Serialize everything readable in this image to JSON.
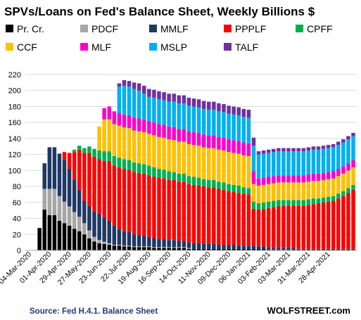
{
  "colors": {
    "Pr. Cr.": "#000000",
    "PDCF": "#a6a6a6",
    "MMLF": "#1f3864",
    "PPPLF": "#ff0000",
    "CPFF": "#00b050",
    "CCF": "#ffc000",
    "MLF": "#ff00cc",
    "MSLP": "#00b0f0",
    "TALF": "#7030a0"
  },
  "chart_data": {
    "type": "bar",
    "stacked": true,
    "title": "SPVs/Loans  on Fed's Balance Sheet, Weekly Billions $",
    "source": "Source: Fed H.4.1. Balance Sheet",
    "brand": "WOLFSTREET.com",
    "legend_position": "top",
    "legend": [
      "Pr. Cr.",
      "PDCF",
      "MMLF",
      "PPPLF",
      "CPFF",
      "CCF",
      "MLF",
      "MSLP",
      "TALF"
    ],
    "ylim": [
      0,
      220
    ],
    "yticks": [
      0,
      20,
      40,
      60,
      80,
      100,
      120,
      140,
      160,
      180,
      200,
      220
    ],
    "grid": true,
    "x_labels": [
      "04-Mar-2020",
      "01-Apr-2020",
      "29-Apr-2020",
      "27-May-2020",
      "23-Jun-2020",
      "22-Jul-2020",
      "19-Aug-2020",
      "16-Sep-2020",
      "14-Oct-2020",
      "11-Nov-2020",
      "09-Dec-2020",
      "06-Jan-2021",
      "03-Feb-2021",
      "03-Mar-2021",
      "31-Mar-2021",
      "28-Apr-2021"
    ],
    "x_label_positions": [
      0,
      4,
      8,
      12,
      16,
      20,
      24,
      28,
      32,
      36,
      40,
      44,
      48,
      52,
      56,
      60
    ],
    "series": [
      {
        "name": "Pr. Cr.",
        "values": [
          0,
          0,
          28,
          51,
          44,
          44,
          37,
          34,
          31,
          27,
          24,
          20,
          15,
          11,
          9,
          8,
          7,
          6,
          6,
          5,
          5,
          4,
          4,
          4,
          4,
          3,
          3,
          3,
          3,
          3,
          3,
          3,
          2,
          2,
          2,
          2,
          2,
          2,
          2,
          2,
          2,
          2,
          2,
          2,
          2,
          2,
          2,
          2,
          1,
          1,
          1,
          1,
          1,
          1,
          1,
          1,
          1,
          1,
          1,
          1,
          1,
          1,
          1,
          1,
          1,
          1
        ]
      },
      {
        "name": "PDCF",
        "values": [
          0,
          0,
          0,
          26,
          33,
          33,
          31,
          27,
          24,
          21,
          18,
          14,
          10,
          6,
          4,
          3,
          2,
          1,
          1,
          1,
          1,
          1,
          1,
          1,
          1,
          1,
          1,
          1,
          1,
          1,
          1,
          1,
          1,
          0,
          0,
          0,
          0,
          0,
          0,
          0,
          0,
          0,
          0,
          0,
          0,
          0,
          0,
          0,
          0,
          0,
          0,
          0,
          0,
          0,
          0,
          0,
          0,
          0,
          0,
          0,
          0,
          0,
          0,
          0,
          0,
          0
        ]
      },
      {
        "name": "MMLF",
        "values": [
          0,
          0,
          0,
          32,
          52,
          52,
          53,
          52,
          47,
          40,
          34,
          28,
          30,
          32,
          33,
          30,
          28,
          24,
          20,
          18,
          17,
          15,
          14,
          13,
          12,
          11,
          10,
          10,
          9,
          9,
          8,
          8,
          7,
          7,
          7,
          6,
          6,
          6,
          5,
          5,
          5,
          5,
          4,
          4,
          4,
          4,
          3,
          3,
          2,
          2,
          2,
          2,
          2,
          2,
          1,
          1,
          1,
          1,
          1,
          1,
          1,
          1,
          1,
          1,
          1,
          1
        ]
      },
      {
        "name": "PPPLF",
        "values": [
          0,
          0,
          0,
          0,
          0,
          0,
          0,
          10,
          20,
          35,
          50,
          60,
          67,
          68,
          68,
          71,
          75,
          75,
          77,
          78,
          78,
          78,
          78,
          78,
          77,
          77,
          77,
          76,
          75,
          75,
          74,
          74,
          73,
          73,
          72,
          72,
          71,
          71,
          70,
          69,
          67,
          66,
          66,
          65,
          64,
          46,
          46,
          47,
          50,
          51,
          52,
          53,
          53,
          53,
          54,
          54,
          55,
          56,
          57,
          58,
          59,
          60,
          63,
          66,
          70,
          74
        ]
      },
      {
        "name": "CPFF",
        "values": [
          0,
          0,
          0,
          0,
          0,
          0,
          0,
          0,
          0,
          3,
          5,
          6,
          8,
          10,
          11,
          12,
          12,
          12,
          12,
          12,
          12,
          12,
          12,
          12,
          12,
          12,
          11,
          11,
          11,
          10,
          10,
          10,
          10,
          10,
          10,
          9,
          9,
          9,
          9,
          9,
          9,
          9,
          9,
          8,
          8,
          9,
          8,
          8,
          8,
          8,
          8,
          7,
          7,
          7,
          7,
          7,
          7,
          7,
          6,
          6,
          6,
          6,
          6,
          6,
          6,
          6
        ]
      },
      {
        "name": "CCF",
        "values": [
          0,
          0,
          0,
          0,
          0,
          0,
          0,
          0,
          0,
          0,
          0,
          0,
          0,
          0,
          30,
          40,
          40,
          40,
          40,
          40,
          40,
          40,
          40,
          40,
          40,
          40,
          40,
          40,
          40,
          40,
          40,
          40,
          40,
          40,
          40,
          40,
          40,
          40,
          40,
          40,
          40,
          40,
          40,
          40,
          40,
          22,
          22,
          22,
          22,
          22,
          22,
          22,
          22,
          22,
          22,
          22,
          22,
          22,
          22,
          22,
          22,
          22,
          22,
          22,
          22,
          22
        ]
      },
      {
        "name": "MLF",
        "values": [
          0,
          0,
          0,
          0,
          0,
          0,
          0,
          0,
          0,
          0,
          0,
          0,
          0,
          0,
          0,
          14,
          16,
          16,
          16,
          16,
          16,
          16,
          16,
          16,
          16,
          16,
          16,
          16,
          16,
          16,
          16,
          16,
          16,
          16,
          16,
          16,
          16,
          16,
          16,
          16,
          16,
          16,
          16,
          16,
          16,
          16,
          9,
          9,
          9,
          9,
          9,
          9,
          9,
          9,
          9,
          9,
          9,
          9,
          9,
          9,
          9,
          9,
          9,
          9,
          9,
          9
        ]
      },
      {
        "name": "MSLP",
        "values": [
          0,
          0,
          0,
          0,
          0,
          0,
          0,
          0,
          0,
          0,
          0,
          0,
          0,
          0,
          0,
          0,
          0,
          0,
          33,
          36,
          36,
          36,
          35,
          32,
          30,
          31,
          31,
          31,
          31,
          32,
          32,
          32,
          32,
          32,
          32,
          32,
          32,
          32,
          32,
          32,
          32,
          32,
          32,
          32,
          32,
          32,
          30,
          30,
          30,
          30,
          30,
          30,
          30,
          30,
          30,
          30,
          30,
          30,
          30,
          30,
          30,
          30,
          30,
          30,
          30,
          30
        ]
      },
      {
        "name": "TALF",
        "values": [
          0,
          0,
          0,
          0,
          0,
          0,
          0,
          0,
          0,
          0,
          0,
          0,
          0,
          0,
          0,
          0,
          0,
          0,
          4,
          7,
          7,
          8,
          9,
          10,
          10,
          10,
          10,
          10,
          10,
          10,
          10,
          10,
          10,
          10,
          10,
          10,
          10,
          10,
          10,
          10,
          10,
          10,
          10,
          10,
          10,
          10,
          4,
          4,
          4,
          4,
          4,
          4,
          4,
          4,
          4,
          4,
          4,
          4,
          4,
          4,
          4,
          4,
          4,
          4,
          4,
          4
        ]
      }
    ]
  }
}
